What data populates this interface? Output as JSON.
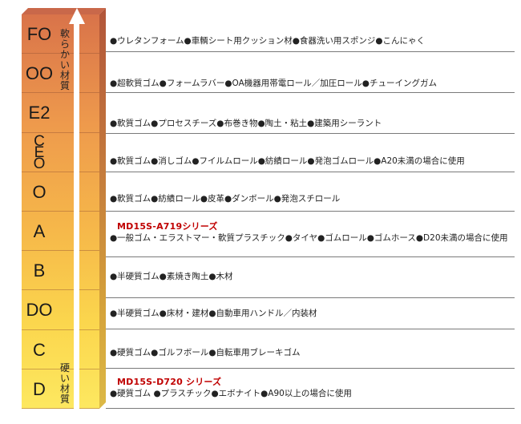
{
  "soft_label": "軟らかい材質",
  "hard_label": "硬い材質",
  "series_a": "MD15S-A719シリーズ",
  "series_d": "MD15S-D720 シリーズ",
  "rows": [
    {
      "label": "FO",
      "text": "●ウレタンフォーム●車輌シート用クッション材●食器洗い用スポンジ●こんにゃく"
    },
    {
      "label": "OO",
      "text": "●超軟質ゴム●フォームラバー●OA機器用帯電ロール／加圧ロール●チューイングガム"
    },
    {
      "label": "E2",
      "text": "●軟質ゴム●プロセスチーズ●布巻き物●陶土・粘土●建築用シーラント"
    },
    {
      "label": "CEO",
      "text": "●軟質ゴム●消しゴム●フイルムロール●紡績ロール●発泡ゴムロール●A20未満の場合に使用"
    },
    {
      "label": "O",
      "text": "●軟質ゴム●紡績ロール●皮革●ダンボール●発泡スチロール"
    },
    {
      "label": "A",
      "text": "●一般ゴム・エラストマー・軟質プラスチック●タイヤ●ゴムロール●ゴムホース●D20未満の場合に使用"
    },
    {
      "label": "B",
      "text": "●半硬質ゴム●素焼き陶土●木材"
    },
    {
      "label": "DO",
      "text": "●半硬質ゴム●床材・建材●自動車用ハンドル／内装材"
    },
    {
      "label": "C",
      "text": "●硬質ゴム●ゴルフボール●自転車用ブレーキゴム"
    },
    {
      "label": "D",
      "text": "●硬質ゴム ●プラスチック●エボナイト●A90以上の場合に使用"
    }
  ]
}
